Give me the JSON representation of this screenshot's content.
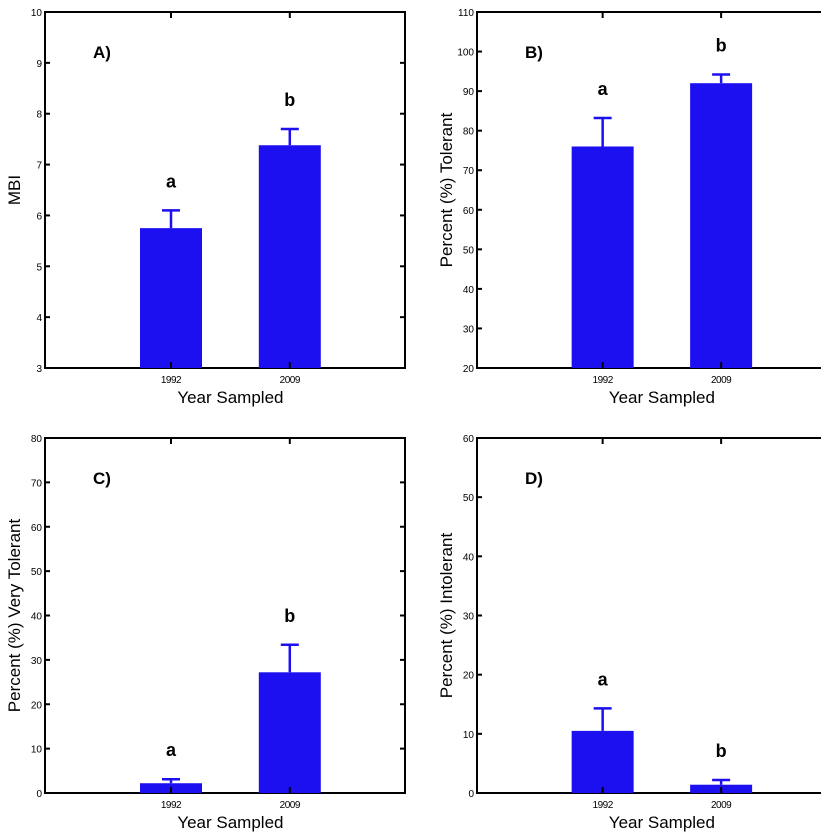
{
  "chart_data": [
    {
      "type": "bar",
      "panel_label": "A)",
      "categories": [
        "1992",
        "2009"
      ],
      "values": [
        5.75,
        7.38
      ],
      "errors": [
        0.35,
        0.32
      ],
      "significance": [
        "a",
        "b"
      ],
      "xlabel": "Year Sampled",
      "ylabel": "MBI",
      "ylim": [
        3,
        10
      ],
      "yticks": [
        3,
        4,
        5,
        6,
        7,
        8,
        9,
        10
      ],
      "bar_color": "#1c0ff0"
    },
    {
      "type": "bar",
      "panel_label": "B)",
      "categories": [
        "1992",
        "2009"
      ],
      "values": [
        76,
        92
      ],
      "errors": [
        7.2,
        2.2
      ],
      "significance": [
        "a",
        "b"
      ],
      "xlabel": "Year Sampled",
      "ylabel": "Percent (%) Tolerant",
      "ylim": [
        20,
        110
      ],
      "yticks": [
        20,
        30,
        40,
        50,
        60,
        70,
        80,
        90,
        100,
        110
      ],
      "bar_color": "#1c0ff0"
    },
    {
      "type": "bar",
      "panel_label": "C)",
      "categories": [
        "1992",
        "2009"
      ],
      "values": [
        2.2,
        27.2
      ],
      "errors": [
        0.9,
        6.2
      ],
      "significance": [
        "a",
        "b"
      ],
      "xlabel": "Year Sampled",
      "ylabel": "Percent (%) Very Tolerant",
      "ylim": [
        0,
        80
      ],
      "yticks": [
        0,
        10,
        20,
        30,
        40,
        50,
        60,
        70,
        80
      ],
      "bar_color": "#1c0ff0"
    },
    {
      "type": "bar",
      "panel_label": "D)",
      "categories": [
        "1992",
        "2009"
      ],
      "values": [
        10.5,
        1.4
      ],
      "errors": [
        3.8,
        0.8
      ],
      "significance": [
        "a",
        "b"
      ],
      "xlabel": "Year Sampled",
      "ylabel": "Percent (%) Intolerant",
      "ylim": [
        0,
        60
      ],
      "yticks": [
        0,
        10,
        20,
        30,
        40,
        50,
        60
      ],
      "bar_color": "#1c0ff0"
    }
  ]
}
